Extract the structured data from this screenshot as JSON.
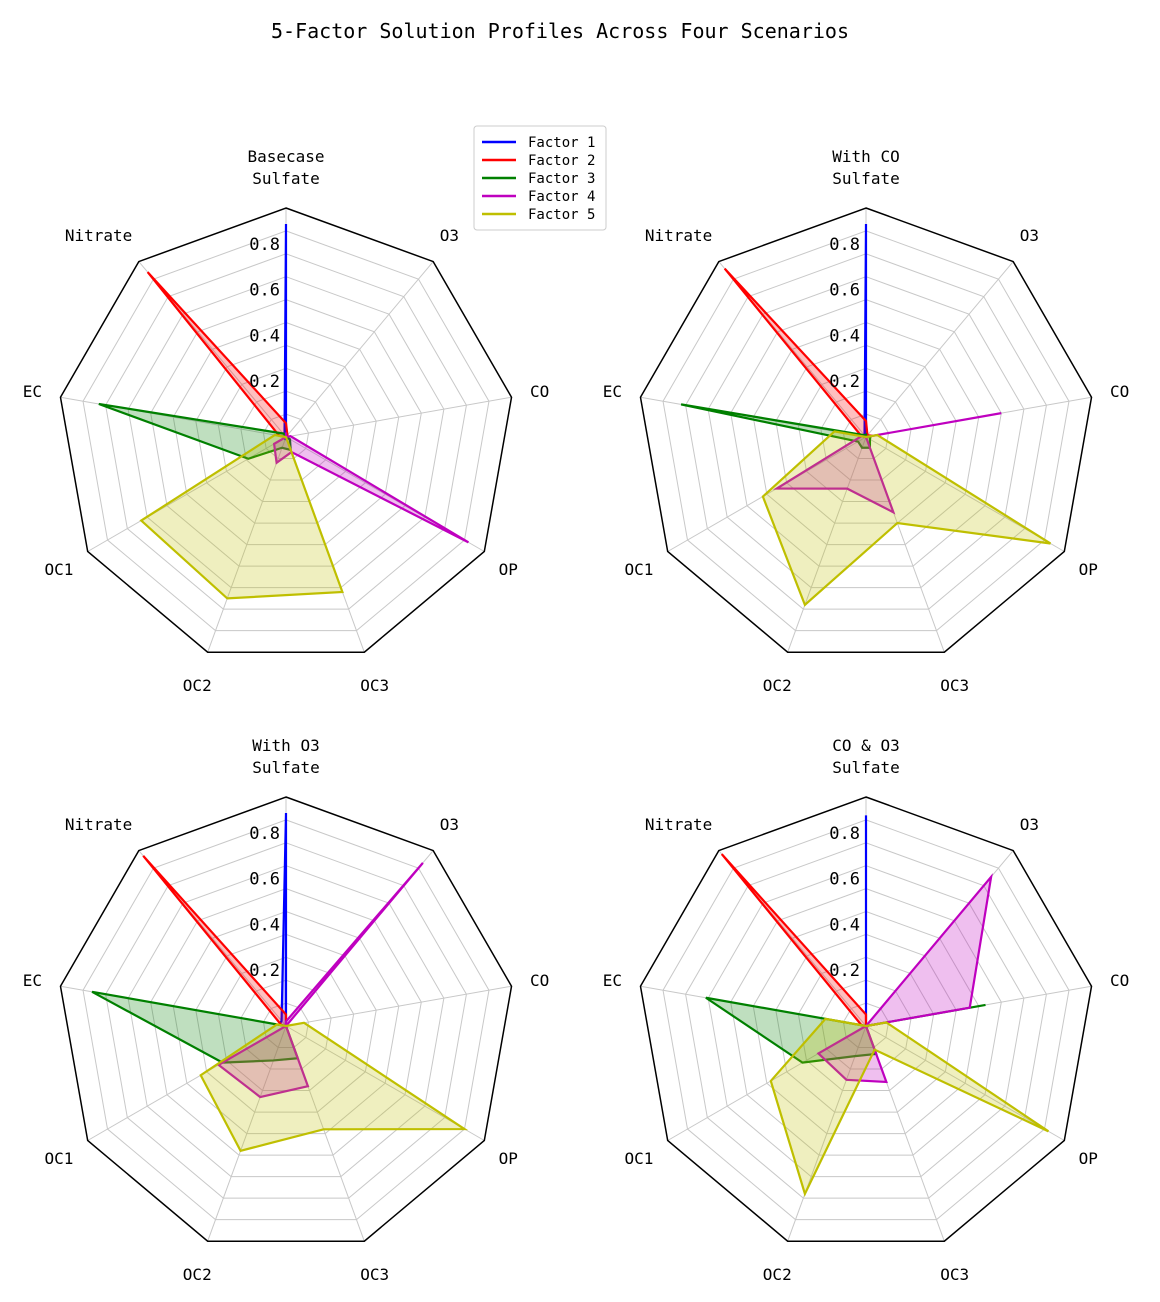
{
  "title": "5-Factor Solution Profiles Across Four Scenarios",
  "colors": {
    "Factor 1": "#0000ff",
    "Factor 2": "#ff0000",
    "Factor 3": "#008000",
    "Factor 4": "#bf00bf",
    "Factor 5": "#bfbf00",
    "grid": "#c8c8c8",
    "frame": "#000000"
  },
  "chart_data": [
    {
      "type": "radar",
      "title": "Basecase",
      "categories": [
        "Sulfate",
        "O3",
        "CO",
        "OP",
        "OC3",
        "OC2",
        "OC1",
        "EC",
        "Nitrate"
      ],
      "ylim": [
        0,
        1.0
      ],
      "ticks": [
        0.2,
        0.4,
        0.6,
        0.8
      ],
      "tick_labels": [
        "0.2",
        "0.4",
        "0.6",
        "0.8"
      ],
      "grid": true,
      "legend": "top-right",
      "series": [
        {
          "name": "Factor 1",
          "values": [
            0.93,
            0.0,
            0.0,
            0.0,
            0.01,
            0.01,
            0.01,
            0.01,
            0.01
          ]
        },
        {
          "name": "Factor 2",
          "values": [
            0.06,
            0.01,
            0.0,
            0.0,
            0.0,
            0.0,
            0.0,
            0.03,
            0.94
          ]
        },
        {
          "name": "Factor 3",
          "values": [
            0.01,
            0.0,
            0.0,
            0.02,
            0.06,
            0.05,
            0.19,
            0.83,
            0.02
          ]
        },
        {
          "name": "Factor 4",
          "values": [
            0.02,
            0.0,
            0.02,
            0.92,
            0.07,
            0.12,
            0.06,
            0.0,
            0.0
          ]
        },
        {
          "name": "Factor 5",
          "values": [
            0.0,
            0.0,
            0.0,
            0.0,
            0.72,
            0.75,
            0.73,
            0.05,
            0.0
          ]
        }
      ]
    },
    {
      "type": "radar",
      "title": "With CO",
      "categories": [
        "Sulfate",
        "O3",
        "CO",
        "OP",
        "OC3",
        "OC2",
        "OC1",
        "EC",
        "Nitrate"
      ],
      "ylim": [
        0,
        1.0
      ],
      "ticks": [
        0.2,
        0.4,
        0.6,
        0.8
      ],
      "tick_labels": [
        "0.2",
        "0.4",
        "0.6",
        "0.8"
      ],
      "grid": true,
      "series": [
        {
          "name": "Factor 1",
          "values": [
            0.93,
            0.0,
            0.0,
            0.0,
            0.0,
            0.0,
            0.0,
            0.01,
            0.01
          ]
        },
        {
          "name": "Factor 2",
          "values": [
            0.07,
            0.01,
            0.03,
            0.0,
            0.0,
            0.0,
            0.0,
            0.02,
            0.96
          ]
        },
        {
          "name": "Factor 3",
          "values": [
            0.01,
            0.0,
            0.02,
            0.02,
            0.05,
            0.05,
            0.04,
            0.82,
            0.01
          ]
        },
        {
          "name": "Factor 4",
          "values": [
            0.0,
            0.0,
            0.6,
            0.0,
            0.35,
            0.24,
            0.45,
            0.02,
            0.0
          ]
        },
        {
          "name": "Factor 5",
          "values": [
            0.0,
            0.0,
            0.05,
            0.93,
            0.4,
            0.78,
            0.52,
            0.14,
            0.0
          ]
        }
      ]
    },
    {
      "type": "radar",
      "title": "With O3",
      "categories": [
        "Sulfate",
        "O3",
        "CO",
        "OP",
        "OC3",
        "OC2",
        "OC1",
        "EC",
        "Nitrate"
      ],
      "ylim": [
        0,
        1.0
      ],
      "ticks": [
        0.2,
        0.4,
        0.6,
        0.8
      ],
      "tick_labels": [
        "0.2",
        "0.4",
        "0.6",
        "0.8"
      ],
      "grid": true,
      "series": [
        {
          "name": "Factor 1",
          "values": [
            0.93,
            0.0,
            0.0,
            0.0,
            0.0,
            0.0,
            0.0,
            0.03,
            0.03
          ]
        },
        {
          "name": "Factor 2",
          "values": [
            0.05,
            0.0,
            0.0,
            0.0,
            0.0,
            0.0,
            0.0,
            0.02,
            0.97
          ]
        },
        {
          "name": "Factor 3",
          "values": [
            0.0,
            0.0,
            0.0,
            0.0,
            0.15,
            0.16,
            0.32,
            0.86,
            0.0
          ]
        },
        {
          "name": "Factor 4",
          "values": [
            0.02,
            0.93,
            0.0,
            0.0,
            0.28,
            0.33,
            0.34,
            0.0,
            0.0
          ]
        },
        {
          "name": "Factor 5",
          "values": [
            0.0,
            0.0,
            0.08,
            0.9,
            0.48,
            0.58,
            0.43,
            0.04,
            0.0
          ]
        }
      ]
    },
    {
      "type": "radar",
      "title": "CO & O3",
      "categories": [
        "Sulfate",
        "O3",
        "CO",
        "OP",
        "OC3",
        "OC2",
        "OC1",
        "EC",
        "Nitrate"
      ],
      "ylim": [
        0,
        1.0
      ],
      "ticks": [
        0.2,
        0.4,
        0.6,
        0.8
      ],
      "tick_labels": [
        "0.2",
        "0.4",
        "0.6",
        "0.8"
      ],
      "grid": true,
      "series": [
        {
          "name": "Factor 1",
          "values": [
            0.92,
            0.0,
            0.0,
            0.0,
            0.0,
            0.0,
            0.0,
            0.0,
            0.0
          ]
        },
        {
          "name": "Factor 2",
          "values": [
            0.05,
            0.0,
            0.06,
            0.0,
            0.0,
            0.0,
            0.0,
            0.02,
            0.98
          ]
        },
        {
          "name": "Factor 3",
          "values": [
            0.0,
            0.0,
            0.53,
            0.0,
            0.13,
            0.14,
            0.32,
            0.71,
            0.0
          ]
        },
        {
          "name": "Factor 4",
          "values": [
            0.0,
            0.85,
            0.46,
            0.0,
            0.26,
            0.25,
            0.24,
            0.0,
            0.0
          ]
        },
        {
          "name": "Factor 5",
          "values": [
            0.0,
            0.0,
            0.09,
            0.92,
            0.11,
            0.78,
            0.48,
            0.18,
            0.0
          ]
        }
      ]
    }
  ],
  "legend": {
    "entries": [
      "Factor 1",
      "Factor 2",
      "Factor 3",
      "Factor 4",
      "Factor 5"
    ]
  }
}
